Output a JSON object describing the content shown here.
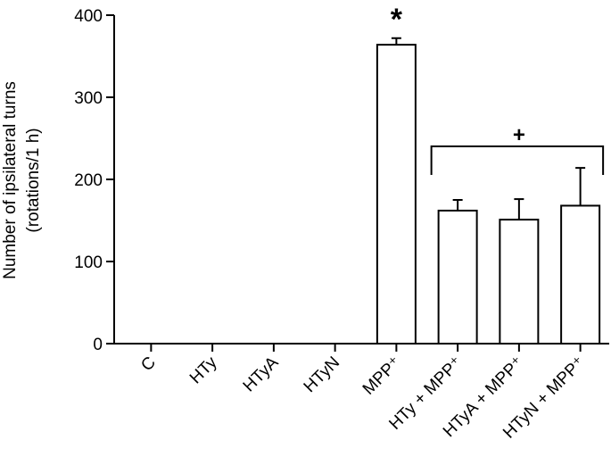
{
  "chart_data": {
    "type": "bar",
    "categories": [
      "C",
      "HTy",
      "HTyA",
      "HTyN",
      "MPP⁺",
      "HTy + MPP⁺",
      "HTyA + MPP⁺",
      "HTyN + MPP⁺"
    ],
    "values": [
      0,
      0,
      0,
      0,
      364,
      162,
      151,
      168
    ],
    "errors": [
      0,
      0,
      0,
      0,
      8,
      13,
      25,
      46
    ],
    "ylabel_line1": "Number of ipsilateral turns",
    "ylabel_line2": "(rotations/1 h)",
    "ylim": [
      0,
      400
    ],
    "yticks": [
      0,
      100,
      200,
      300,
      400
    ],
    "grid": false,
    "annotations": {
      "mpp_marker": "*",
      "group_marker": "+"
    },
    "colors": {
      "bar_fill": "#ffffff",
      "bar_stroke": "#000000"
    }
  }
}
